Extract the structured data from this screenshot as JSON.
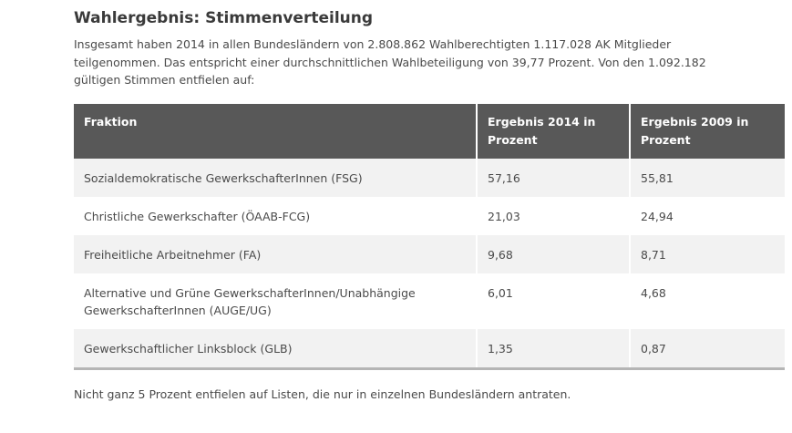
{
  "heading": "Wahlergebnis: Stimmenverteilung",
  "intro": "Insgesamt haben 2014 in allen Bundesländern von 2.808.862 Wahlberechtigten 1.117.028 AK Mitglieder teilgenommen. Das entspricht einer durchschnittlichen Wahlbeteiligung von 39,77 Prozent. Von den 1.092.182 gültigen Stimmen entfielen auf:",
  "table": {
    "headers": [
      "Fraktion",
      "Ergebnis 2014 in Prozent",
      "Ergebnis 2009 in Prozent"
    ],
    "rows": [
      {
        "fraktion": "Sozialdemokratische GewerkschafterInnen (FSG)",
        "r2014": "57,16",
        "r2009": "55,81"
      },
      {
        "fraktion": "Christliche Gewerkschafter (ÖAAB-FCG)",
        "r2014": "21,03",
        "r2009": "24,94"
      },
      {
        "fraktion": "Freiheitliche Arbeitnehmer (FA)",
        "r2014": "9,68",
        "r2009": "8,71"
      },
      {
        "fraktion": "Alternative und Grüne GewerkschafterInnen/Unabhängige GewerkschafterInnen (AUGE/UG)",
        "r2014": "6,01",
        "r2009": "4,68"
      },
      {
        "fraktion": "Gewerkschaftlicher Linksblock (GLB)",
        "r2014": "1,35",
        "r2009": "0,87"
      }
    ]
  },
  "footnote": "Nicht ganz 5 Prozent entfielen auf Listen, die nur in einzelnen Bundesländern antraten."
}
